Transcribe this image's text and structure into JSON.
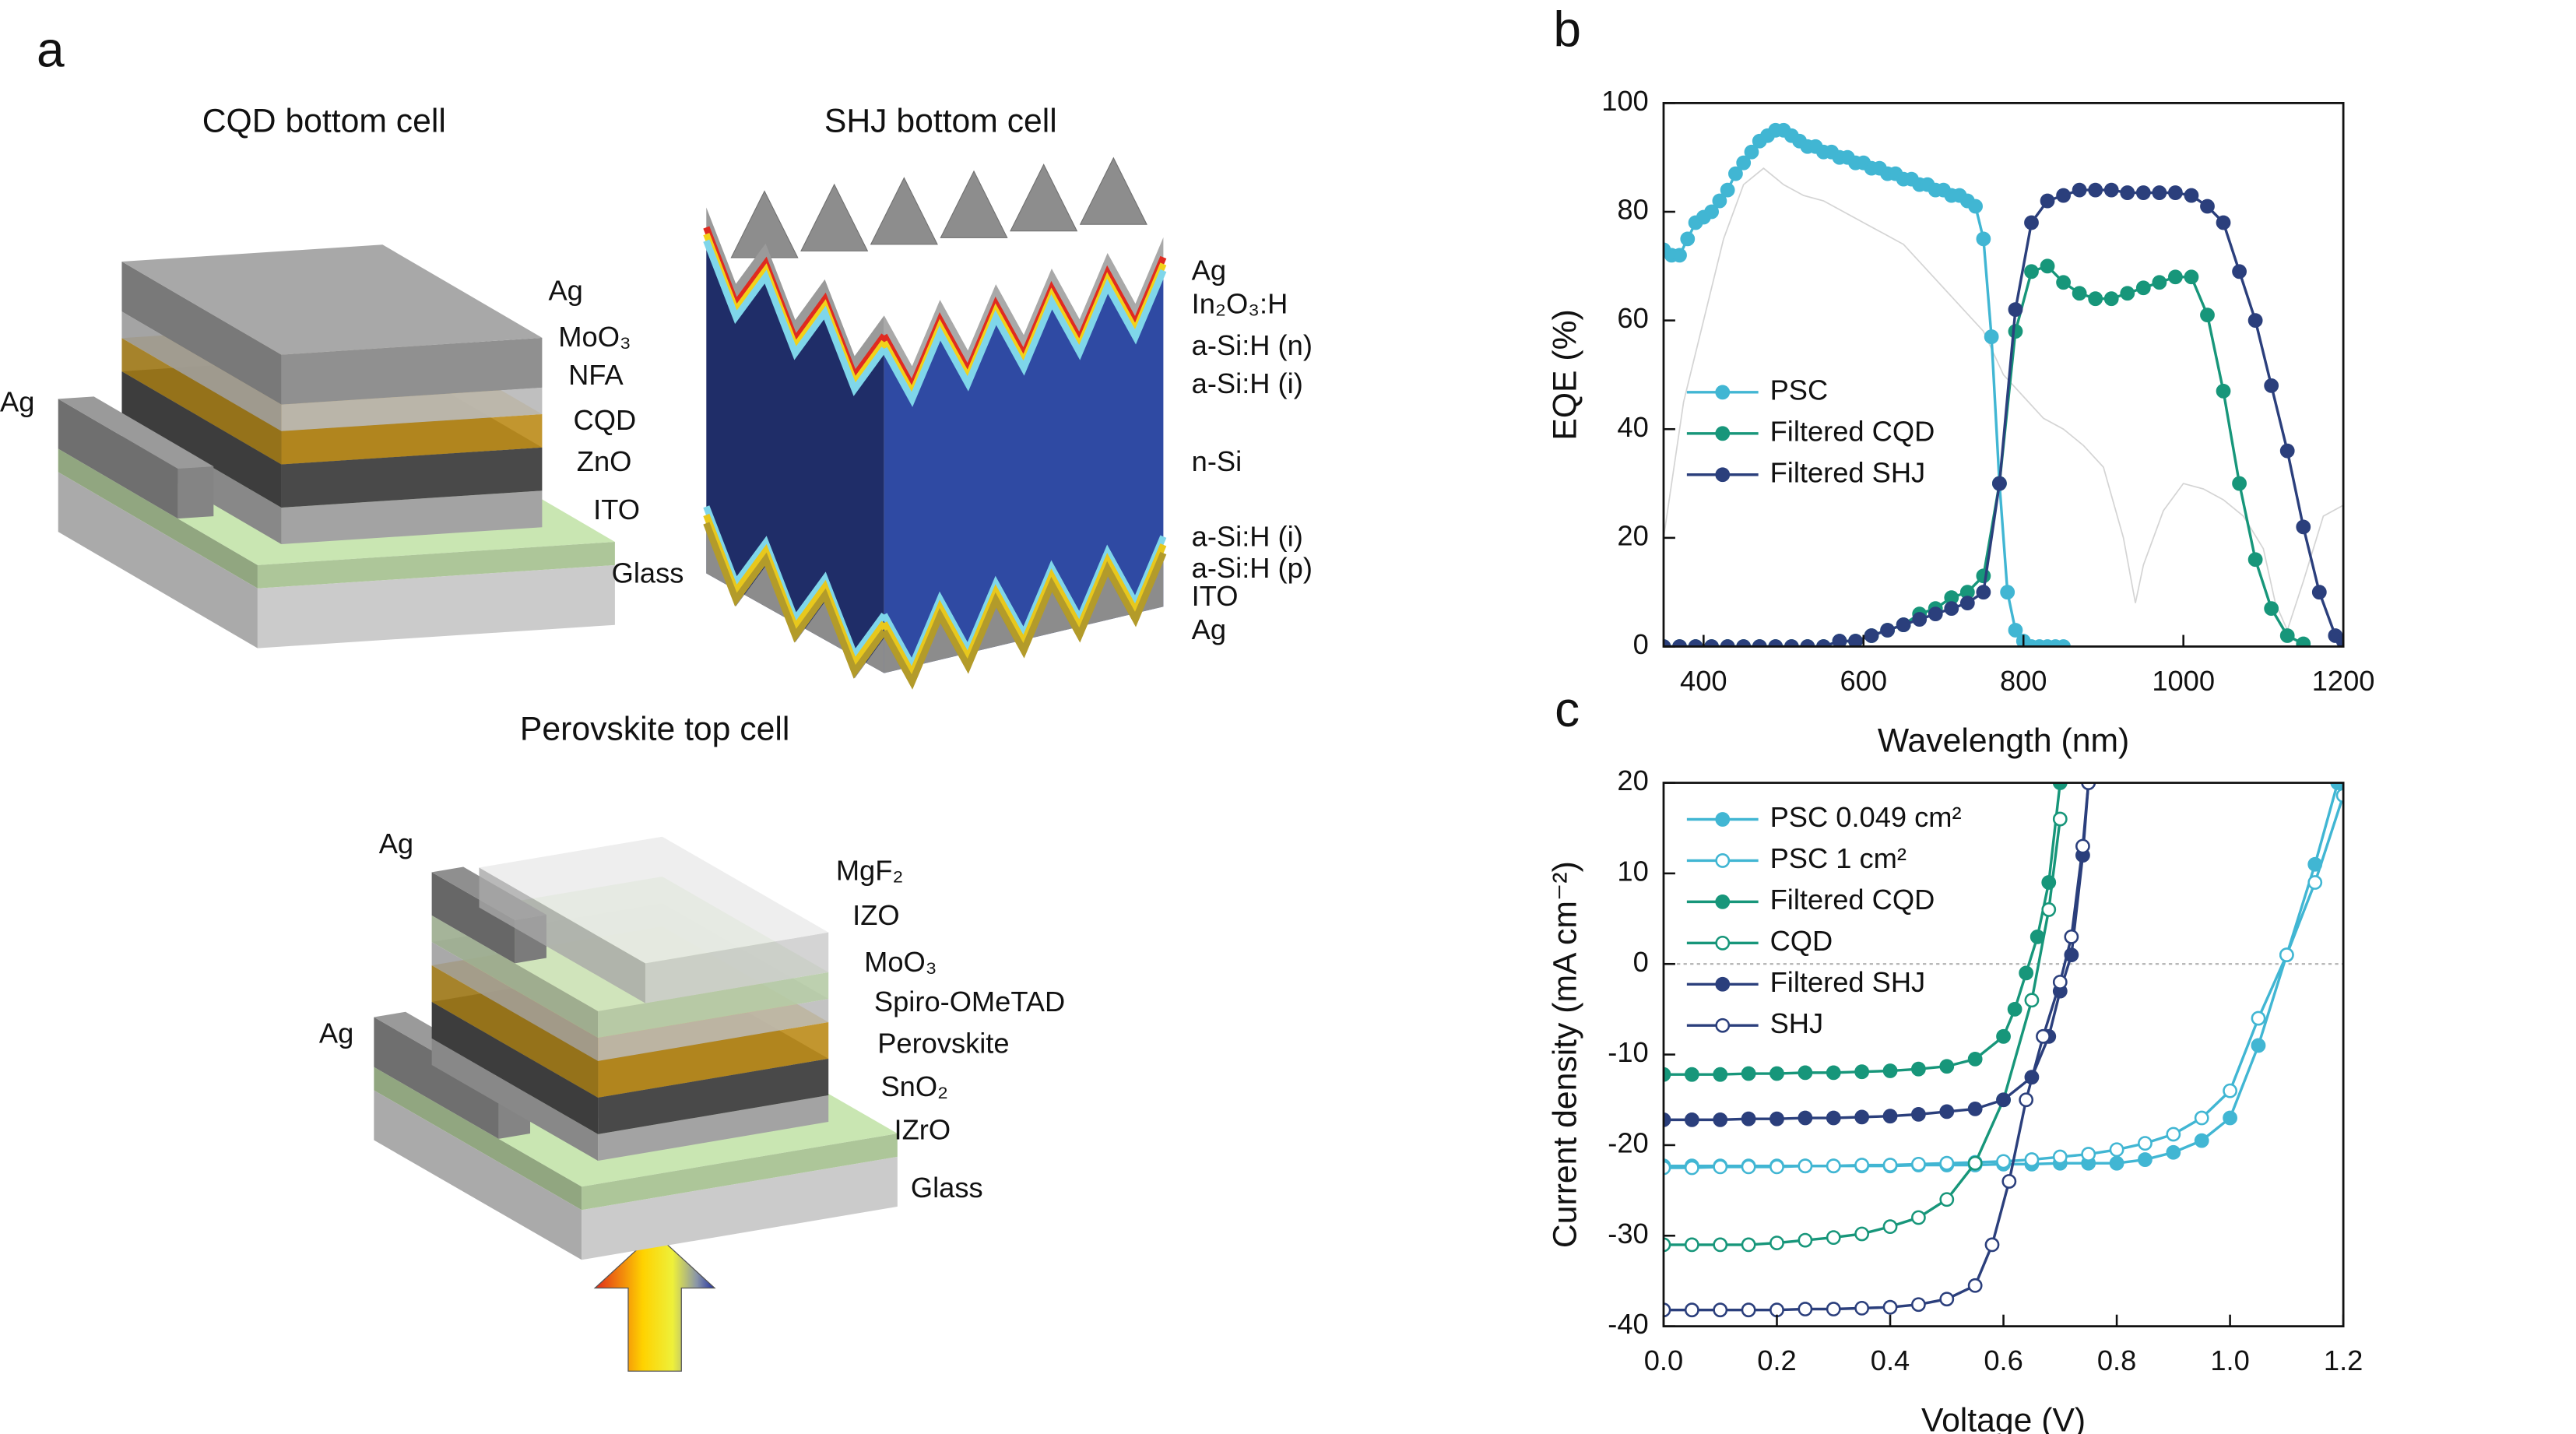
{
  "diagram": {
    "panel_label": "a",
    "cqd": {
      "title": "CQD bottom cell",
      "contact": "Ag",
      "layers": [
        "Ag",
        "MoO₃",
        "NFA",
        "CQD",
        "ZnO",
        "ITO",
        "Glass"
      ]
    },
    "shj": {
      "title": "SHJ bottom cell",
      "layers": [
        "Ag",
        "In₂O₃:H",
        "a-Si:H (n)",
        "a-Si:H (i)",
        "n-Si",
        "a-Si:H (i)",
        "a-Si:H (p)",
        "ITO",
        "Ag"
      ]
    },
    "perovskite": {
      "title": "Perovskite top cell",
      "contact_top": "Ag",
      "contact_bottom": "Ag",
      "layers": [
        "MgF₂",
        "IZO",
        "MoO₃",
        "Spiro-OMeTAD",
        "Perovskite",
        "SnO₂",
        "IZrO",
        "Glass"
      ]
    }
  },
  "chart_data": [
    {
      "type": "line",
      "panel_label": "b",
      "x_label": "Wavelength (nm)",
      "y_label": "EQE (%)",
      "xlim": [
        350,
        1200
      ],
      "ylim": [
        0,
        100
      ],
      "xticks": [
        400,
        600,
        800,
        1000,
        1200
      ],
      "yticks": [
        0,
        20,
        40,
        60,
        80,
        100
      ],
      "series": [
        {
          "color": "#d4d4d4",
          "marker": "none",
          "x": [
            350,
            375,
            400,
            425,
            450,
            475,
            500,
            525,
            550,
            575,
            600,
            625,
            650,
            675,
            700,
            725,
            750,
            775,
            800,
            825,
            850,
            875,
            900,
            925,
            940,
            950,
            975,
            1000,
            1025,
            1050,
            1075,
            1100,
            1115,
            1130,
            1150,
            1175,
            1200
          ],
          "values": [
            20,
            45,
            60,
            75,
            85,
            88,
            85,
            83,
            82,
            80,
            78,
            76,
            74,
            70,
            66,
            62,
            58,
            50,
            46,
            42,
            40,
            37,
            33,
            20,
            8,
            15,
            25,
            30,
            29,
            27,
            24,
            18,
            8,
            3,
            12,
            24,
            26
          ]
        },
        {
          "name": "PSC",
          "color": "#41b6d3",
          "marker": "filled",
          "x": [
            350,
            360,
            370,
            380,
            390,
            400,
            410,
            420,
            430,
            440,
            450,
            460,
            470,
            480,
            490,
            500,
            510,
            520,
            530,
            540,
            550,
            560,
            570,
            580,
            590,
            600,
            610,
            620,
            630,
            640,
            650,
            660,
            670,
            680,
            690,
            700,
            710,
            720,
            730,
            740,
            750,
            760,
            770,
            780,
            790,
            800,
            810,
            820,
            830,
            840,
            850
          ],
          "values": [
            73,
            72,
            72,
            75,
            78,
            79,
            80,
            82,
            84,
            87,
            89,
            91,
            93,
            94,
            95,
            95,
            94,
            93,
            92,
            92,
            91,
            91,
            90,
            90,
            89,
            89,
            88,
            88,
            87,
            87,
            86,
            86,
            85,
            85,
            84,
            84,
            83,
            83,
            82,
            81,
            75,
            57,
            30,
            10,
            3,
            1,
            0,
            0,
            0,
            0,
            0
          ]
        },
        {
          "name": "Filtered CQD",
          "color": "#17967a",
          "marker": "filled",
          "x": [
            350,
            370,
            390,
            410,
            430,
            450,
            470,
            490,
            510,
            530,
            550,
            570,
            590,
            610,
            630,
            650,
            670,
            690,
            710,
            730,
            750,
            770,
            790,
            810,
            830,
            850,
            870,
            890,
            910,
            930,
            950,
            970,
            990,
            1010,
            1030,
            1050,
            1070,
            1090,
            1110,
            1130,
            1150
          ],
          "values": [
            0,
            0,
            0,
            0,
            0,
            0,
            0,
            0,
            0,
            0,
            0,
            1,
            1,
            2,
            3,
            4,
            6,
            7,
            9,
            10,
            13,
            30,
            58,
            69,
            70,
            67,
            65,
            64,
            64,
            65,
            66,
            67,
            68,
            68,
            61,
            47,
            30,
            16,
            7,
            2,
            0.5
          ]
        },
        {
          "name": "Filtered SHJ",
          "color": "#2b3f7c",
          "marker": "filled",
          "x": [
            350,
            370,
            390,
            410,
            430,
            450,
            470,
            490,
            510,
            530,
            550,
            570,
            590,
            610,
            630,
            650,
            670,
            690,
            710,
            730,
            750,
            770,
            790,
            810,
            830,
            850,
            870,
            890,
            910,
            930,
            950,
            970,
            990,
            1010,
            1030,
            1050,
            1070,
            1090,
            1110,
            1130,
            1150,
            1170,
            1190,
            1200
          ],
          "values": [
            0,
            0,
            0,
            0,
            0,
            0,
            0,
            0,
            0,
            0,
            0,
            1,
            1,
            2,
            3,
            4,
            5,
            6,
            7,
            8,
            10,
            30,
            62,
            78,
            82,
            83,
            84,
            84,
            84,
            83.5,
            83.5,
            83.5,
            83.5,
            83,
            81,
            78,
            69,
            60,
            48,
            36,
            22,
            10,
            2,
            1
          ]
        }
      ]
    },
    {
      "type": "line",
      "panel_label": "c",
      "x_label": "Voltage (V)",
      "y_label": "Current density (mA cm⁻²)",
      "xlim": [
        0,
        1.2
      ],
      "ylim": [
        -40,
        20
      ],
      "xticks": [
        {
          "value": 0,
          "label": "0.0"
        },
        0.2,
        0.4,
        0.6,
        0.8,
        {
          "value": 1,
          "label": "1.0"
        },
        1.2
      ],
      "yticks": [
        -40,
        -30,
        -20,
        -10,
        0,
        10,
        20
      ],
      "reference_line": 0,
      "series": [
        {
          "name": "PSC 0.049 cm²",
          "color": "#41b6d3",
          "marker": "filled",
          "x": [
            0,
            0.05,
            0.1,
            0.15,
            0.2,
            0.25,
            0.3,
            0.35,
            0.4,
            0.45,
            0.5,
            0.55,
            0.6,
            0.65,
            0.7,
            0.75,
            0.8,
            0.85,
            0.9,
            0.95,
            1,
            1.05,
            1.1,
            1.15,
            1.19
          ],
          "values": [
            -22.3,
            -22.3,
            -22.3,
            -22.3,
            -22.3,
            -22.3,
            -22.3,
            -22.3,
            -22.3,
            -22.2,
            -22.2,
            -22.2,
            -22.1,
            -22.1,
            -22,
            -22,
            -22,
            -21.6,
            -20.8,
            -19.5,
            -17,
            -9,
            1,
            11,
            20
          ]
        },
        {
          "name": "PSC 1 cm²",
          "color": "#41b6d3",
          "marker": "open",
          "x": [
            0,
            0.05,
            0.1,
            0.15,
            0.2,
            0.25,
            0.3,
            0.35,
            0.4,
            0.45,
            0.5,
            0.55,
            0.6,
            0.65,
            0.7,
            0.75,
            0.8,
            0.85,
            0.9,
            0.95,
            1,
            1.05,
            1.1,
            1.15,
            1.2
          ],
          "values": [
            -22.5,
            -22.5,
            -22.4,
            -22.4,
            -22.4,
            -22.3,
            -22.3,
            -22.2,
            -22.2,
            -22.1,
            -22,
            -21.9,
            -21.8,
            -21.6,
            -21.3,
            -21,
            -20.5,
            -19.8,
            -18.8,
            -17,
            -14,
            -6,
            1,
            9,
            18.6
          ]
        },
        {
          "name": "Filtered CQD",
          "color": "#17967a",
          "marker": "filled",
          "x": [
            0,
            0.05,
            0.1,
            0.15,
            0.2,
            0.25,
            0.3,
            0.35,
            0.4,
            0.45,
            0.5,
            0.55,
            0.6,
            0.62,
            0.64,
            0.66,
            0.68,
            0.7
          ],
          "values": [
            -12.2,
            -12.2,
            -12.2,
            -12.1,
            -12.1,
            -12,
            -12,
            -11.9,
            -11.8,
            -11.6,
            -11.3,
            -10.5,
            -8,
            -5,
            -1,
            3,
            9,
            20
          ]
        },
        {
          "name": "CQD",
          "color": "#17967a",
          "marker": "open",
          "x": [
            0,
            0.05,
            0.1,
            0.15,
            0.2,
            0.25,
            0.3,
            0.35,
            0.4,
            0.45,
            0.5,
            0.55,
            0.6,
            0.65,
            0.68,
            0.7
          ],
          "values": [
            -31,
            -31,
            -31,
            -31,
            -30.8,
            -30.5,
            -30.2,
            -29.8,
            -29,
            -28,
            -26,
            -22,
            -15,
            -4,
            6,
            16
          ]
        },
        {
          "name": "Filtered SHJ",
          "color": "#2b3f7c",
          "marker": "filled",
          "x": [
            0,
            0.05,
            0.1,
            0.15,
            0.2,
            0.25,
            0.3,
            0.35,
            0.4,
            0.45,
            0.5,
            0.55,
            0.6,
            0.65,
            0.68,
            0.7,
            0.72,
            0.74,
            0.75
          ],
          "values": [
            -17.2,
            -17.2,
            -17.2,
            -17.1,
            -17.1,
            -17,
            -17,
            -16.9,
            -16.8,
            -16.6,
            -16.3,
            -16,
            -15,
            -12.5,
            -8,
            -3,
            1,
            12,
            20
          ]
        },
        {
          "name": "SHJ",
          "color": "#2b3f7c",
          "marker": "open",
          "x": [
            0,
            0.05,
            0.1,
            0.15,
            0.2,
            0.25,
            0.3,
            0.35,
            0.4,
            0.45,
            0.5,
            0.55,
            0.58,
            0.61,
            0.64,
            0.67,
            0.7,
            0.72,
            0.74,
            0.75
          ],
          "values": [
            -38.2,
            -38.2,
            -38.2,
            -38.2,
            -38.2,
            -38.1,
            -38.1,
            -38,
            -37.9,
            -37.6,
            -37,
            -35.5,
            -31,
            -24,
            -15,
            -8,
            -2,
            3,
            13,
            20
          ]
        }
      ]
    }
  ]
}
